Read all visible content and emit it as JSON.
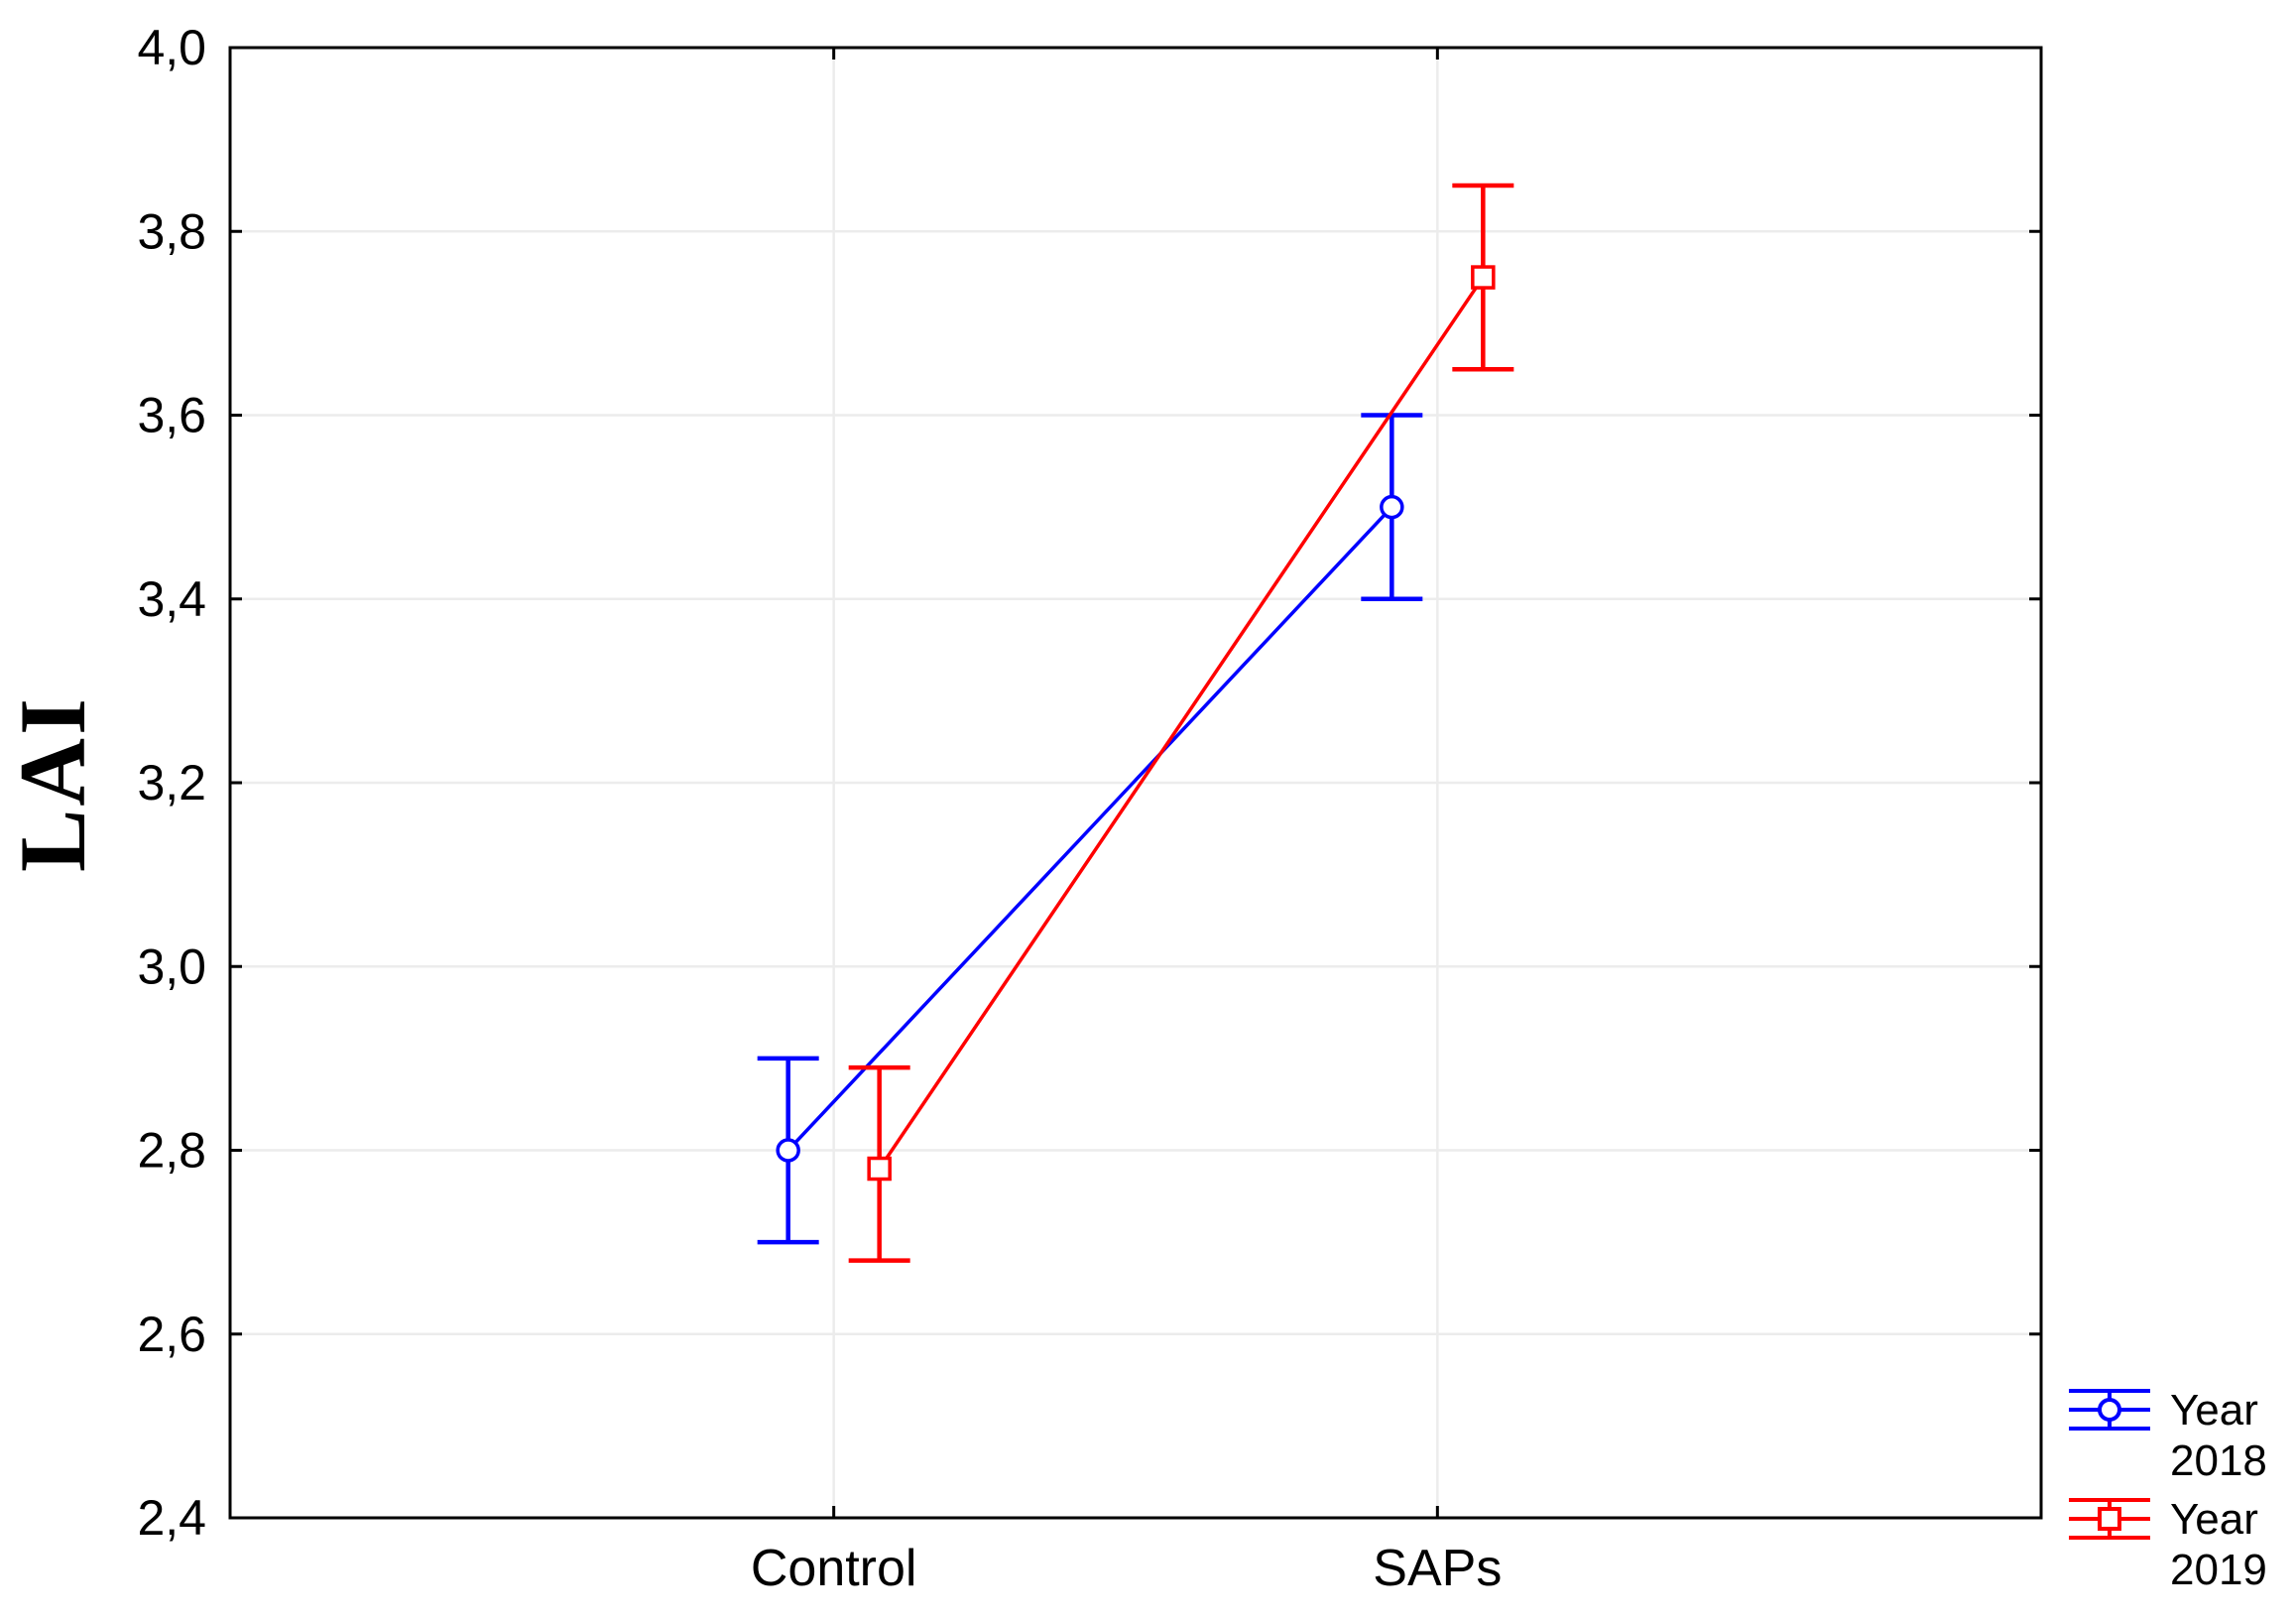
{
  "figure": {
    "background": "#ffffff",
    "axis_color": "#000000",
    "grid_color": "#ececec",
    "tick_label_color": "#000000"
  },
  "chart_data": {
    "type": "line",
    "title": "",
    "xlabel": "",
    "ylabel": "LAI",
    "categories": [
      "Control",
      "SAPs"
    ],
    "series": [
      {
        "name": "Year 2018",
        "color": "#0000ff",
        "marker": "circle",
        "values": [
          2.8,
          3.5
        ],
        "error_low": [
          2.7,
          3.4
        ],
        "error_high": [
          2.9,
          3.6
        ]
      },
      {
        "name": "Year 2019",
        "color": "#ff0000",
        "marker": "square",
        "values": [
          2.78,
          3.75
        ],
        "error_low": [
          2.68,
          3.65
        ],
        "error_high": [
          2.89,
          3.85
        ]
      }
    ],
    "ylim": [
      2.4,
      4.0
    ],
    "ytick_step": 0.2,
    "ytick_labels": [
      "2,4",
      "2,6",
      "2,8",
      "3,0",
      "3,2",
      "3,4",
      "3,6",
      "3,8",
      "4,0"
    ],
    "decimal_separator": ",",
    "grid": true,
    "legend_position": "outside-bottom-right"
  }
}
